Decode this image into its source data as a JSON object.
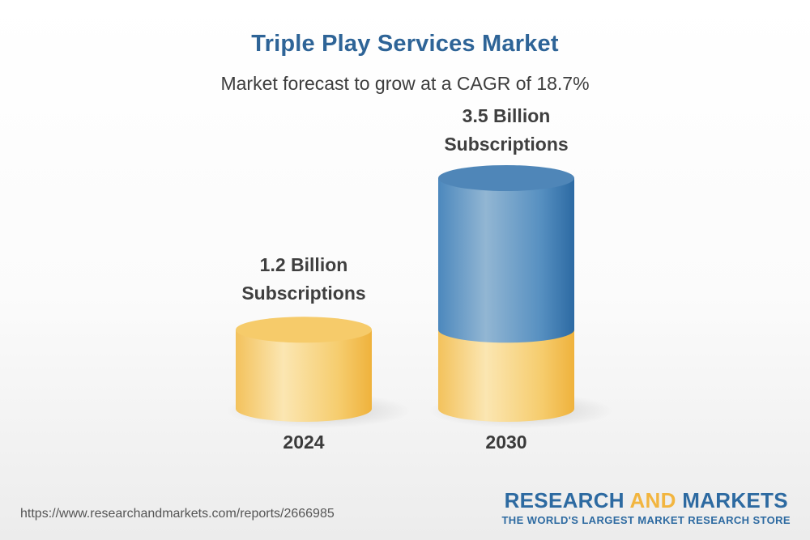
{
  "chart_data": {
    "type": "bar",
    "title": "Triple Play Services Market",
    "subtitle": "Market forecast to grow at a CAGR of 18.7%",
    "categories": [
      "2024",
      "2030"
    ],
    "values": [
      1.2,
      3.5
    ],
    "value_labels": [
      "1.2 Billion Subscriptions",
      "3.5 Billion Subscriptions"
    ],
    "value_label_lines": [
      [
        "1.2 Billion",
        "Subscriptions"
      ],
      [
        "3.5 Billion",
        "Subscriptions"
      ]
    ],
    "unit": "Billion Subscriptions",
    "cagr": "18.7%",
    "colors": {
      "base": "#f4c25a",
      "growth": "#3d7db5"
    },
    "grid": false
  },
  "footer": {
    "url": "https://www.researchandmarkets.com/reports/2666985",
    "brand_research": "RESEARCH",
    "brand_and": "AND",
    "brand_markets": "MARKETS",
    "brand_tagline": "THE WORLD'S LARGEST MARKET RESEARCH STORE"
  }
}
